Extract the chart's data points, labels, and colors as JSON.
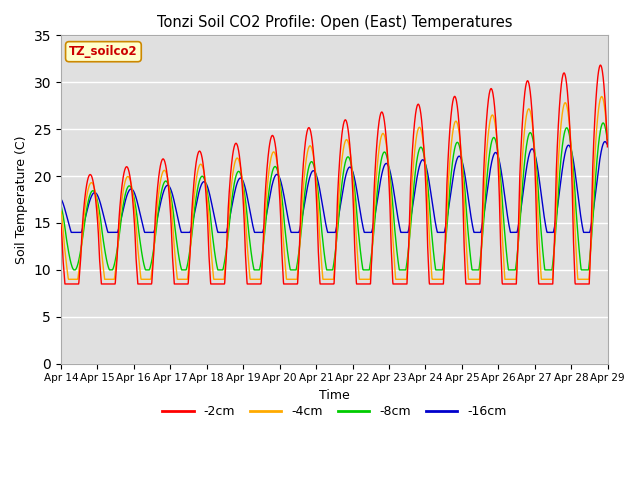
{
  "title": "Tonzi Soil CO2 Profile: Open (East) Temperatures",
  "xlabel": "Time",
  "ylabel": "Soil Temperature (C)",
  "ylim": [
    0,
    35
  ],
  "yticks": [
    0,
    5,
    10,
    15,
    20,
    25,
    30,
    35
  ],
  "plot_bg_color": "#e0e0e0",
  "outer_bg_color": "#ffffff",
  "grid_color": "#ffffff",
  "legend_label": "TZ_soilco2",
  "legend_text_color": "#cc0000",
  "legend_box_color": "#ffffcc",
  "series_labels": [
    "-2cm",
    "-4cm",
    "-8cm",
    "-16cm"
  ],
  "series_colors": [
    "#ff0000",
    "#ffaa00",
    "#00cc00",
    "#0000cc"
  ],
  "n_days": 15,
  "start_day": 14,
  "samples_per_day": 144
}
